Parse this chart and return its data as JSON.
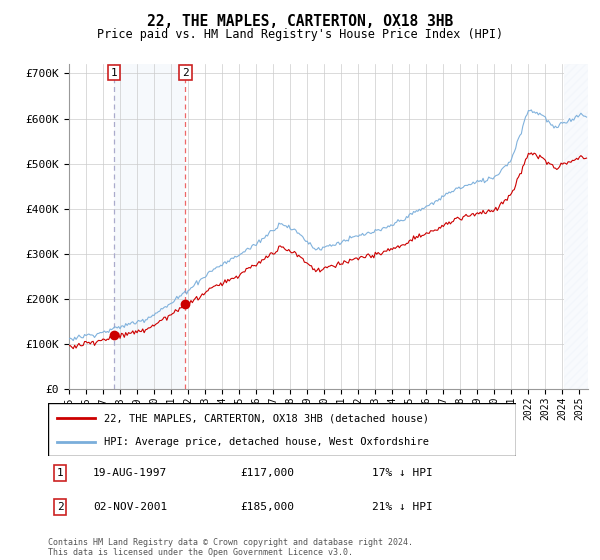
{
  "title": "22, THE MAPLES, CARTERTON, OX18 3HB",
  "subtitle": "Price paid vs. HM Land Registry's House Price Index (HPI)",
  "ylim": [
    0,
    720000
  ],
  "yticks": [
    0,
    100000,
    200000,
    300000,
    400000,
    500000,
    600000,
    700000
  ],
  "ytick_labels": [
    "£0",
    "£100K",
    "£200K",
    "£300K",
    "£400K",
    "£500K",
    "£600K",
    "£700K"
  ],
  "hpi_color": "#7aaedb",
  "price_color": "#cc0000",
  "marker_color": "#cc0000",
  "vline1_color": "#aaaaaa",
  "vline2_color": "#ee6666",
  "purchase1_year": 1997.63,
  "purchase1_price": 117000,
  "purchase1_label": "1",
  "purchase1_date": "19-AUG-1997",
  "purchase1_hpi_pct": "17% ↓ HPI",
  "purchase2_year": 2001.84,
  "purchase2_price": 185000,
  "purchase2_label": "2",
  "purchase2_date": "02-NOV-2001",
  "purchase2_hpi_pct": "21% ↓ HPI",
  "legend_price_label": "22, THE MAPLES, CARTERTON, OX18 3HB (detached house)",
  "legend_hpi_label": "HPI: Average price, detached house, West Oxfordshire",
  "footer": "Contains HM Land Registry data © Crown copyright and database right 2024.\nThis data is licensed under the Open Government Licence v3.0.",
  "xmin": 1995,
  "xmax": 2025.5,
  "shade_color": "#dde8f5",
  "hatched_region_start": 2024.1,
  "hatched_region_end": 2025.5
}
